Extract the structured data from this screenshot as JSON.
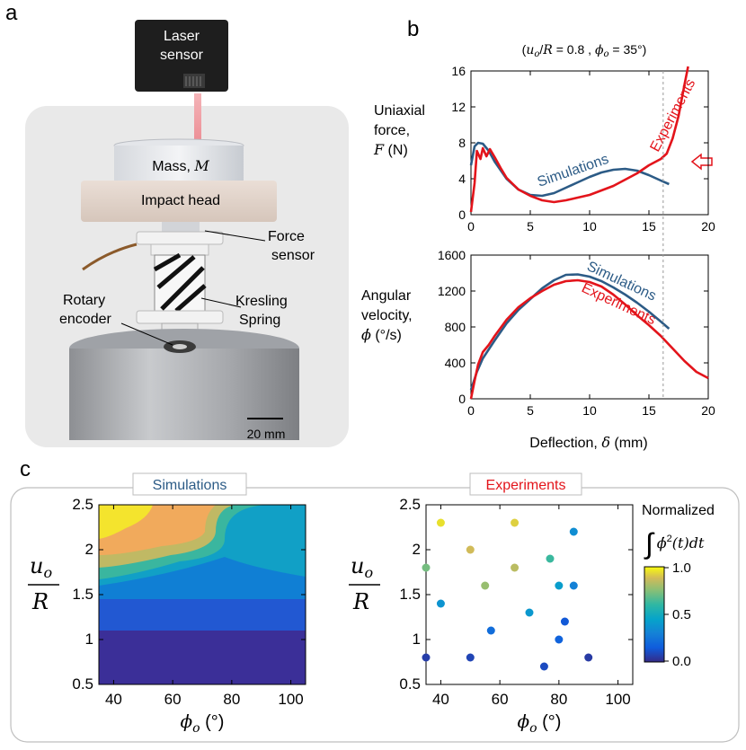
{
  "panels": {
    "a": "a",
    "b": "b",
    "c": "c"
  },
  "photo": {
    "laser_label": [
      "Laser",
      "sensor"
    ],
    "mass_label": "Mass, ",
    "mass_symbol": "M",
    "impact_label": "Impact head",
    "force_label": [
      "Force",
      "sensor"
    ],
    "rotary_label": [
      "Rotary",
      "encoder"
    ],
    "kresling_label": [
      "Kresling",
      "Spring"
    ],
    "scale_bar": "20 mm"
  },
  "params": "(u_o / R = 0.8 ,  φ_o = 35°)",
  "colors": {
    "sim": "#2c5b86",
    "exp": "#e3141b",
    "grid": "#9a9a9a"
  },
  "chart_data": [
    {
      "type": "line",
      "title": "",
      "ylabel": [
        "Uniaxial",
        "force,",
        "F (N)"
      ],
      "xlabel": "",
      "xlim": [
        0,
        20
      ],
      "ylim": [
        0,
        16
      ],
      "xticks": [
        0,
        5,
        10,
        15,
        20
      ],
      "yticks": [
        0,
        4,
        8,
        12,
        16
      ],
      "series": [
        {
          "name": "Simulations",
          "color": "#2c5b86",
          "x": [
            0,
            0.3,
            0.6,
            1.0,
            1.5,
            2.0,
            3.0,
            4.0,
            5.0,
            6.0,
            7.0,
            8.0,
            9.0,
            10.0,
            11.0,
            12.0,
            13.0,
            14.0,
            15.0,
            16.0,
            16.7
          ],
          "y": [
            5.5,
            7.6,
            8.0,
            7.9,
            7.1,
            5.9,
            4.0,
            2.8,
            2.2,
            2.1,
            2.4,
            3.0,
            3.6,
            4.2,
            4.7,
            5.0,
            5.1,
            4.9,
            4.4,
            3.8,
            3.4
          ]
        },
        {
          "name": "Experiments",
          "color": "#e3141b",
          "x": [
            0,
            0.3,
            0.5,
            0.8,
            1.0,
            1.3,
            1.6,
            2.0,
            2.5,
            3.0,
            4.0,
            5.0,
            6.0,
            7.0,
            8.0,
            9.0,
            10.0,
            11.0,
            12.0,
            13.0,
            14.0,
            15.0,
            16.0,
            16.5,
            17.0,
            17.5,
            18.0,
            18.3
          ],
          "y": [
            0.3,
            3.5,
            7.1,
            6.2,
            7.4,
            6.5,
            7.3,
            6.4,
            5.2,
            4.1,
            2.8,
            2.1,
            1.6,
            1.4,
            1.6,
            1.9,
            2.2,
            2.7,
            3.2,
            3.9,
            4.6,
            5.5,
            6.2,
            6.8,
            8.5,
            11.0,
            14.5,
            16.5
          ]
        }
      ],
      "annotations": [
        "Simulations",
        "Experiments"
      ]
    },
    {
      "type": "line",
      "title": "",
      "ylabel": [
        "Angular",
        "velocity,",
        "φ (°/s)"
      ],
      "xlabel": "Deflection, δ (mm)",
      "xlim": [
        0,
        20
      ],
      "ylim": [
        0,
        1600
      ],
      "xticks": [
        0,
        5,
        10,
        15,
        20
      ],
      "yticks": [
        0,
        400,
        800,
        1200,
        1600
      ],
      "series": [
        {
          "name": "Simulations",
          "color": "#2c5b86",
          "x": [
            0,
            0.5,
            1,
            2,
            3,
            4,
            5,
            6,
            7,
            8,
            9,
            10,
            11,
            12,
            13,
            14,
            15,
            16,
            16.7
          ],
          "y": [
            100,
            300,
            450,
            650,
            840,
            990,
            1110,
            1230,
            1320,
            1380,
            1385,
            1360,
            1310,
            1240,
            1160,
            1070,
            970,
            860,
            780
          ]
        },
        {
          "name": "Experiments",
          "color": "#e3141b",
          "x": [
            0,
            0.3,
            0.6,
            1,
            1.5,
            2,
            3,
            4,
            5,
            6,
            7,
            8,
            9,
            10,
            11,
            12,
            13,
            14,
            15,
            16,
            17,
            18,
            19,
            20
          ],
          "y": [
            0,
            200,
            380,
            520,
            600,
            700,
            880,
            1020,
            1120,
            1200,
            1270,
            1310,
            1320,
            1300,
            1250,
            1160,
            1050,
            930,
            820,
            700,
            560,
            420,
            300,
            230
          ]
        }
      ],
      "annotations": [
        "Simulations",
        "Experiments"
      ]
    },
    {
      "type": "heatmap",
      "title": "Simulations",
      "xlabel": "φ_o (°)",
      "ylabel": "u_o / R",
      "xlim": [
        35,
        105
      ],
      "ylim": [
        0.5,
        2.5
      ],
      "xticks": [
        40,
        60,
        80,
        100
      ],
      "yticks": [
        0.5,
        1,
        1.5,
        2,
        2.5
      ]
    },
    {
      "type": "scatter",
      "title": "Experiments",
      "xlabel": "φ_o (°)",
      "ylabel": "u_o / R",
      "xlim": [
        35,
        105
      ],
      "ylim": [
        0.5,
        2.5
      ],
      "xticks": [
        40,
        60,
        80,
        100
      ],
      "yticks": [
        0.5,
        1,
        1.5,
        2,
        2.5
      ],
      "points": [
        {
          "x": 40,
          "y": 2.3,
          "v": 0.95
        },
        {
          "x": 65,
          "y": 2.3,
          "v": 0.92
        },
        {
          "x": 50,
          "y": 2.0,
          "v": 0.88
        },
        {
          "x": 85,
          "y": 2.2,
          "v": 0.35
        },
        {
          "x": 35,
          "y": 1.8,
          "v": 0.72
        },
        {
          "x": 65,
          "y": 1.8,
          "v": 0.84
        },
        {
          "x": 77,
          "y": 1.9,
          "v": 0.62
        },
        {
          "x": 40,
          "y": 1.4,
          "v": 0.38
        },
        {
          "x": 55,
          "y": 1.6,
          "v": 0.78
        },
        {
          "x": 80,
          "y": 1.6,
          "v": 0.42
        },
        {
          "x": 85,
          "y": 1.6,
          "v": 0.3
        },
        {
          "x": 70,
          "y": 1.3,
          "v": 0.4
        },
        {
          "x": 57,
          "y": 1.1,
          "v": 0.22
        },
        {
          "x": 82,
          "y": 1.2,
          "v": 0.14
        },
        {
          "x": 80,
          "y": 1.0,
          "v": 0.18
        },
        {
          "x": 35,
          "y": 0.8,
          "v": 0.06
        },
        {
          "x": 50,
          "y": 0.8,
          "v": 0.08
        },
        {
          "x": 75,
          "y": 0.7,
          "v": 0.1
        },
        {
          "x": 90,
          "y": 0.8,
          "v": 0.05
        }
      ],
      "colorbar": {
        "title": "Normalized",
        "min": "0.0",
        "mid": "0.5",
        "max": "1.0"
      }
    }
  ]
}
